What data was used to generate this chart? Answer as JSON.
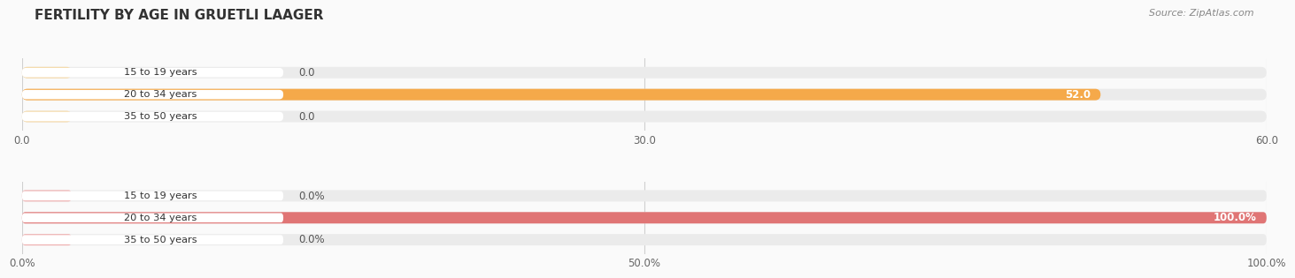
{
  "title": "FERTILITY BY AGE IN GRUETLI LAAGER",
  "source": "Source: ZipAtlas.com",
  "chart1": {
    "categories": [
      "15 to 19 years",
      "20 to 34 years",
      "35 to 50 years"
    ],
    "values": [
      0.0,
      52.0,
      0.0
    ],
    "max_val": 60.0,
    "xticks": [
      0.0,
      30.0,
      60.0
    ],
    "xtick_labels": [
      "0.0",
      "30.0",
      "60.0"
    ],
    "bar_color_main": "#F5A94A",
    "bar_color_light": "#F5D9A8",
    "bar_bg_color": "#EBEBEB"
  },
  "chart2": {
    "categories": [
      "15 to 19 years",
      "20 to 34 years",
      "35 to 50 years"
    ],
    "values": [
      0.0,
      100.0,
      0.0
    ],
    "max_val": 100.0,
    "xticks": [
      0.0,
      50.0,
      100.0
    ],
    "xtick_labels": [
      "0.0%",
      "50.0%",
      "100.0%"
    ],
    "bar_color_main": "#E07575",
    "bar_color_light": "#EFAFAF",
    "bar_bg_color": "#EBEBEB"
  },
  "fig_bg_color": "#FAFAFA",
  "title_fontsize": 11,
  "source_fontsize": 8
}
